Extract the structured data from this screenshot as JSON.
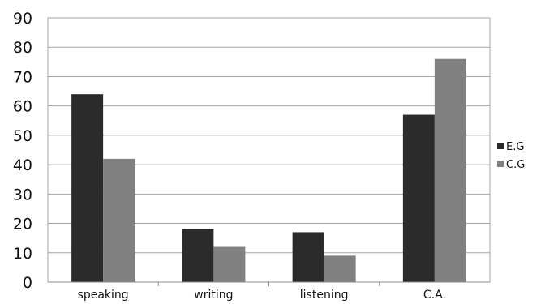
{
  "chart_data": {
    "type": "bar",
    "title": "",
    "xlabel": "",
    "ylabel": "",
    "categories": [
      "speaking",
      "writing",
      "listening",
      "C.A."
    ],
    "series": [
      {
        "name": "E.G",
        "values": [
          64,
          18,
          17,
          57
        ],
        "color": "#2b2b2b"
      },
      {
        "name": "C.G",
        "values": [
          42,
          12,
          9,
          76
        ],
        "color": "#808080"
      }
    ],
    "ylim": [
      0,
      90
    ],
    "yticks": [
      "0",
      "10",
      "20",
      "30",
      "40",
      "50",
      "60",
      "70",
      "80",
      "90"
    ],
    "grid": true,
    "legend": "right"
  }
}
